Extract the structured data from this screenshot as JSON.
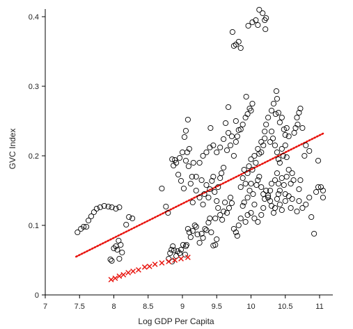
{
  "chart_data": {
    "type": "scatter",
    "title": "",
    "xlabel": "Log GDP Per Capita",
    "ylabel": "GVC Index",
    "xlim": [
      7,
      11.2
    ],
    "ylim": [
      0,
      0.42
    ],
    "x_ticks": [
      "7",
      "7.5",
      "8",
      "8.5",
      "9",
      "9.5",
      "10",
      "10.5",
      "11"
    ],
    "y_ticks": [
      "0",
      "0.1",
      "0.2",
      "0.3",
      "0.4"
    ],
    "grid": false,
    "legend": "none",
    "colors": {
      "points": "#000000",
      "trend": "#e8120c",
      "cross": "#e8120c"
    },
    "series": [
      {
        "marker": "circle",
        "points": [
          [
            7.47,
            0.09
          ],
          [
            7.52,
            0.095
          ],
          [
            7.56,
            0.098
          ],
          [
            7.6,
            0.098
          ],
          [
            7.63,
            0.107
          ],
          [
            7.67,
            0.113
          ],
          [
            7.71,
            0.119
          ],
          [
            7.75,
            0.124
          ],
          [
            7.8,
            0.126
          ],
          [
            7.86,
            0.128
          ],
          [
            7.92,
            0.127
          ],
          [
            7.97,
            0.126
          ],
          [
            8.03,
            0.124
          ],
          [
            8.08,
            0.126
          ],
          [
            8.18,
            0.101
          ],
          [
            8.22,
            0.112
          ],
          [
            8.27,
            0.11
          ],
          [
            7.95,
            0.051
          ],
          [
            7.97,
            0.049
          ],
          [
            8.0,
            0.067
          ],
          [
            8.03,
            0.07
          ],
          [
            8.05,
            0.065
          ],
          [
            8.07,
            0.078
          ],
          [
            8.1,
            0.072
          ],
          [
            8.12,
            0.061
          ],
          [
            8.08,
            0.052
          ],
          [
            8.8,
            0.052
          ],
          [
            8.82,
            0.06
          ],
          [
            8.84,
            0.065
          ],
          [
            8.86,
            0.07
          ],
          [
            8.88,
            0.064
          ],
          [
            8.91,
            0.056
          ],
          [
            8.93,
            0.063
          ],
          [
            8.96,
            0.06
          ],
          [
            8.98,
            0.065
          ],
          [
            9.01,
            0.072
          ],
          [
            9.04,
            0.058
          ],
          [
            9.06,
            0.072
          ],
          [
            8.85,
            0.048
          ],
          [
            8.7,
            0.153
          ],
          [
            8.76,
            0.127
          ],
          [
            8.79,
            0.118
          ],
          [
            8.85,
            0.195
          ],
          [
            8.87,
            0.186
          ],
          [
            8.89,
            0.194
          ],
          [
            8.91,
            0.19
          ],
          [
            8.94,
            0.173
          ],
          [
            8.96,
            0.197
          ],
          [
            9.0,
            0.205
          ],
          [
            8.98,
            0.164
          ],
          [
            9.02,
            0.153
          ],
          [
            9.05,
            0.193
          ],
          [
            9.07,
            0.205
          ],
          [
            9.09,
            0.185
          ],
          [
            9.12,
            0.16
          ],
          [
            9.14,
            0.17
          ],
          [
            9.16,
            0.19
          ],
          [
            9.1,
            0.21
          ],
          [
            9.03,
            0.227
          ],
          [
            9.05,
            0.236
          ],
          [
            9.08,
            0.252
          ],
          [
            9.41,
            0.24
          ],
          [
            9.05,
            0.07
          ],
          [
            9.08,
            0.095
          ],
          [
            9.1,
            0.09
          ],
          [
            9.12,
            0.083
          ],
          [
            9.15,
            0.092
          ],
          [
            9.18,
            0.1
          ],
          [
            9.2,
            0.098
          ],
          [
            9.22,
            0.087
          ],
          [
            9.25,
            0.075
          ],
          [
            9.28,
            0.088
          ],
          [
            9.3,
            0.082
          ],
          [
            9.33,
            0.095
          ],
          [
            9.35,
            0.093
          ],
          [
            9.38,
            0.104
          ],
          [
            9.4,
            0.11
          ],
          [
            9.42,
            0.09
          ],
          [
            9.45,
            0.071
          ],
          [
            9.48,
            0.072
          ],
          [
            9.5,
            0.08
          ],
          [
            9.15,
            0.133
          ],
          [
            9.2,
            0.15
          ],
          [
            9.25,
            0.14
          ],
          [
            9.28,
            0.165
          ],
          [
            9.3,
            0.13
          ],
          [
            9.32,
            0.145
          ],
          [
            9.35,
            0.158
          ],
          [
            9.38,
            0.14
          ],
          [
            9.4,
            0.152
          ],
          [
            9.43,
            0.164
          ],
          [
            9.45,
            0.17
          ],
          [
            9.47,
            0.148
          ],
          [
            9.5,
            0.135
          ],
          [
            9.52,
            0.155
          ],
          [
            9.55,
            0.168
          ],
          [
            9.57,
            0.175
          ],
          [
            9.6,
            0.183
          ],
          [
            9.2,
            0.17
          ],
          [
            9.25,
            0.19
          ],
          [
            9.3,
            0.2
          ],
          [
            9.35,
            0.205
          ],
          [
            9.4,
            0.212
          ],
          [
            9.45,
            0.215
          ],
          [
            9.5,
            0.205
          ],
          [
            9.55,
            0.212
          ],
          [
            9.6,
            0.224
          ],
          [
            9.63,
            0.247
          ],
          [
            9.65,
            0.208
          ],
          [
            9.67,
            0.233
          ],
          [
            9.7,
            0.215
          ],
          [
            9.72,
            0.228
          ],
          [
            9.75,
            0.2
          ],
          [
            9.78,
            0.22
          ],
          [
            9.8,
            0.228
          ],
          [
            9.82,
            0.237
          ],
          [
            9.48,
            0.11
          ],
          [
            9.52,
            0.125
          ],
          [
            9.55,
            0.115
          ],
          [
            9.58,
            0.108
          ],
          [
            9.6,
            0.12
          ],
          [
            9.62,
            0.133
          ],
          [
            9.65,
            0.118
          ],
          [
            9.68,
            0.125
          ],
          [
            9.7,
            0.14
          ],
          [
            9.72,
            0.132
          ],
          [
            9.75,
            0.095
          ],
          [
            9.78,
            0.09
          ],
          [
            9.8,
            0.085
          ],
          [
            9.82,
            0.1
          ],
          [
            9.85,
            0.11
          ],
          [
            9.88,
            0.128
          ],
          [
            9.9,
            0.133
          ],
          [
            9.92,
            0.105
          ],
          [
            9.95,
            0.115
          ],
          [
            9.85,
            0.155
          ],
          [
            9.88,
            0.168
          ],
          [
            9.9,
            0.18
          ],
          [
            9.92,
            0.16
          ],
          [
            9.95,
            0.175
          ],
          [
            9.97,
            0.185
          ],
          [
            10.0,
            0.195
          ],
          [
            10.02,
            0.18
          ],
          [
            10.05,
            0.2
          ],
          [
            10.07,
            0.19
          ],
          [
            10.1,
            0.21
          ],
          [
            10.12,
            0.203
          ],
          [
            10.15,
            0.22
          ],
          [
            10.18,
            0.215
          ],
          [
            10.2,
            0.225
          ],
          [
            9.88,
            0.245
          ],
          [
            9.92,
            0.255
          ],
          [
            9.95,
            0.26
          ],
          [
            9.98,
            0.268
          ],
          [
            10.0,
            0.265
          ],
          [
            10.02,
            0.275
          ],
          [
            9.93,
            0.285
          ],
          [
            9.67,
            0.27
          ],
          [
            9.78,
            0.25
          ],
          [
            9.85,
            0.238
          ],
          [
            9.95,
            0.14
          ],
          [
            9.98,
            0.15
          ],
          [
            10.0,
            0.16
          ],
          [
            10.03,
            0.145
          ],
          [
            10.05,
            0.13
          ],
          [
            10.08,
            0.158
          ],
          [
            10.1,
            0.165
          ],
          [
            10.12,
            0.17
          ],
          [
            10.15,
            0.155
          ],
          [
            10.18,
            0.145
          ],
          [
            10.0,
            0.118
          ],
          [
            10.05,
            0.11
          ],
          [
            10.1,
            0.105
          ],
          [
            10.15,
            0.115
          ],
          [
            10.18,
            0.125
          ],
          [
            10.2,
            0.138
          ],
          [
            10.22,
            0.15
          ],
          [
            10.25,
            0.143
          ],
          [
            10.28,
            0.135
          ],
          [
            10.3,
            0.128
          ],
          [
            10.33,
            0.118
          ],
          [
            10.35,
            0.125
          ],
          [
            10.38,
            0.138
          ],
          [
            10.4,
            0.145
          ],
          [
            10.15,
            0.205
          ],
          [
            10.2,
            0.235
          ],
          [
            10.22,
            0.245
          ],
          [
            10.25,
            0.255
          ],
          [
            10.28,
            0.22
          ],
          [
            10.3,
            0.235
          ],
          [
            10.32,
            0.225
          ],
          [
            10.35,
            0.215
          ],
          [
            10.38,
            0.205
          ],
          [
            10.4,
            0.195
          ],
          [
            10.42,
            0.19
          ],
          [
            10.45,
            0.21
          ],
          [
            10.47,
            0.2
          ],
          [
            10.5,
            0.215
          ],
          [
            10.52,
            0.198
          ],
          [
            10.3,
            0.265
          ],
          [
            10.33,
            0.275
          ],
          [
            10.36,
            0.26
          ],
          [
            10.38,
            0.282
          ],
          [
            10.4,
            0.262
          ],
          [
            10.42,
            0.248
          ],
          [
            10.45,
            0.255
          ],
          [
            10.48,
            0.238
          ],
          [
            10.5,
            0.23
          ],
          [
            10.52,
            0.24
          ],
          [
            10.55,
            0.228
          ],
          [
            10.37,
            0.293
          ],
          [
            10.35,
            0.165
          ],
          [
            10.38,
            0.175
          ],
          [
            10.4,
            0.16
          ],
          [
            10.42,
            0.15
          ],
          [
            10.45,
            0.168
          ],
          [
            10.48,
            0.158
          ],
          [
            10.5,
            0.145
          ],
          [
            10.52,
            0.17
          ],
          [
            10.55,
            0.18
          ],
          [
            10.58,
            0.16
          ],
          [
            10.6,
            0.175
          ],
          [
            10.62,
            0.165
          ],
          [
            10.25,
            0.14
          ],
          [
            10.28,
            0.15
          ],
          [
            10.3,
            0.16
          ],
          [
            10.42,
            0.13
          ],
          [
            10.45,
            0.122
          ],
          [
            10.5,
            0.135
          ],
          [
            10.55,
            0.142
          ],
          [
            10.58,
            0.125
          ],
          [
            10.6,
            0.138
          ],
          [
            10.65,
            0.24
          ],
          [
            10.67,
            0.255
          ],
          [
            10.7,
            0.262
          ],
          [
            10.72,
            0.268
          ],
          [
            10.68,
            0.245
          ],
          [
            10.63,
            0.233
          ],
          [
            10.75,
            0.24
          ],
          [
            10.78,
            0.2
          ],
          [
            10.8,
            0.215
          ],
          [
            10.85,
            0.207
          ],
          [
            10.72,
            0.165
          ],
          [
            10.7,
            0.152
          ],
          [
            10.67,
            0.12
          ],
          [
            10.7,
            0.135
          ],
          [
            10.75,
            0.125
          ],
          [
            10.8,
            0.13
          ],
          [
            10.85,
            0.14
          ],
          [
            10.88,
            0.112
          ],
          [
            10.95,
            0.148
          ],
          [
            10.98,
            0.155
          ],
          [
            11.02,
            0.155
          ],
          [
            11.05,
            0.15
          ],
          [
            11.05,
            0.14
          ],
          [
            10.92,
            0.088
          ],
          [
            10.98,
            0.193
          ],
          [
            9.73,
            0.378
          ],
          [
            9.75,
            0.358
          ],
          [
            9.78,
            0.36
          ],
          [
            9.82,
            0.364
          ],
          [
            9.85,
            0.355
          ],
          [
            9.96,
            0.387
          ],
          [
            10.02,
            0.392
          ],
          [
            10.07,
            0.395
          ],
          [
            10.1,
            0.388
          ],
          [
            10.12,
            0.41
          ],
          [
            10.17,
            0.405
          ],
          [
            10.2,
            0.395
          ],
          [
            10.22,
            0.398
          ],
          [
            10.21,
            0.382
          ]
        ]
      },
      {
        "marker": "cross",
        "points": [
          [
            7.96,
            0.022
          ],
          [
            8.02,
            0.024
          ],
          [
            8.08,
            0.027
          ],
          [
            8.14,
            0.029
          ],
          [
            8.21,
            0.032
          ],
          [
            8.28,
            0.034
          ],
          [
            8.36,
            0.036
          ],
          [
            8.45,
            0.04
          ],
          [
            8.52,
            0.041
          ],
          [
            8.6,
            0.044
          ],
          [
            8.7,
            0.046
          ],
          [
            8.8,
            0.048
          ],
          [
            8.89,
            0.05
          ],
          [
            8.98,
            0.052
          ],
          [
            9.08,
            0.054
          ]
        ]
      }
    ],
    "trend_line": {
      "style": "dotted",
      "x": [
        7.45,
        11.05
      ],
      "y": [
        0.055,
        0.232
      ]
    }
  }
}
